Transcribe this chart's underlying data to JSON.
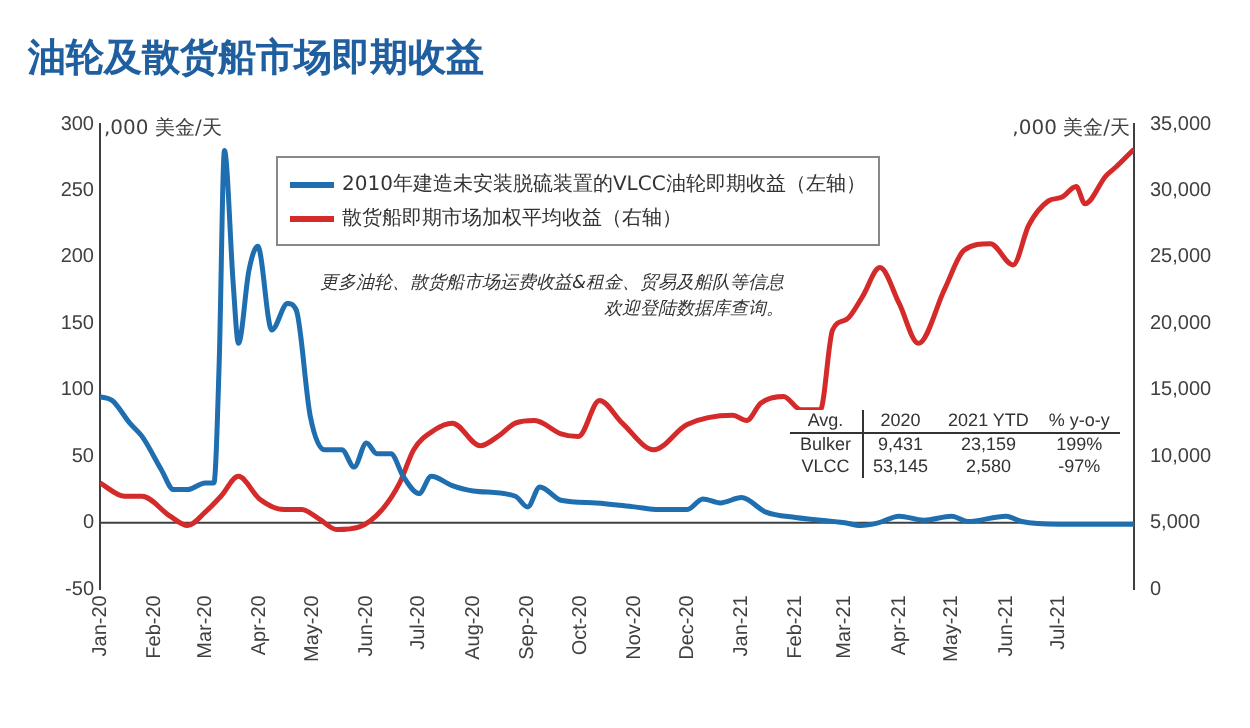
{
  "chart_data": {
    "type": "line",
    "title": "油轮及散货船市场即期收益",
    "ylabel": ",000 美金/天",
    "y2label": ",000 美金/天",
    "xlim": [
      "2020-01-01",
      "2021-08-13"
    ],
    "xticks": [
      {
        "value": "2020-01-01",
        "label": "Jan-20"
      },
      {
        "value": "2020-02-01",
        "label": "Feb-20"
      },
      {
        "value": "2020-03-01",
        "label": "Mar-20"
      },
      {
        "value": "2020-04-01",
        "label": "Apr-20"
      },
      {
        "value": "2020-05-01",
        "label": "May-20"
      },
      {
        "value": "2020-06-01",
        "label": "Jun-20"
      },
      {
        "value": "2020-07-01",
        "label": "Jul-20"
      },
      {
        "value": "2020-08-01",
        "label": "Aug-20"
      },
      {
        "value": "2020-09-01",
        "label": "Sep-20"
      },
      {
        "value": "2020-10-01",
        "label": "Oct-20"
      },
      {
        "value": "2020-11-01",
        "label": "Nov-20"
      },
      {
        "value": "2020-12-01",
        "label": "Dec-20"
      },
      {
        "value": "2021-01-01",
        "label": "Jan-21"
      },
      {
        "value": "2021-02-01",
        "label": "Feb-21"
      },
      {
        "value": "2021-03-01",
        "label": "Mar-21"
      },
      {
        "value": "2021-04-01",
        "label": "Apr-21"
      },
      {
        "value": "2021-05-01",
        "label": "May-21"
      },
      {
        "value": "2021-06-01",
        "label": "Jun-21"
      },
      {
        "value": "2021-07-01",
        "label": "Jul-21"
      }
    ],
    "ylim": [
      -50,
      300
    ],
    "yticks": [
      -50,
      0,
      50,
      100,
      150,
      200,
      250,
      300
    ],
    "y2lim": [
      0,
      35000
    ],
    "y2ticks": [
      0,
      {
        "value": 5000,
        "label": "5,000"
      },
      {
        "value": 10000,
        "label": "10,000"
      },
      {
        "value": 15000,
        "label": "15,000"
      },
      {
        "value": 20000,
        "label": "20,000"
      },
      {
        "value": 25000,
        "label": "25,000"
      },
      {
        "value": 30000,
        "label": "30,000"
      },
      {
        "value": 35000,
        "label": "35,000"
      }
    ],
    "grid": false,
    "legend": "top",
    "marker": "none",
    "line_style": "solid",
    "ref_lines": [
      {
        "axis": "y",
        "value": 0,
        "color": "#404040"
      }
    ],
    "annotations": [
      "更多油轮、散货船市场运费收益&租金、贸易及船队等信息",
      "欢迎登陆数据库查询。",
      "Avg.",
      "2020",
      "2021 YTD",
      "% y-o-y",
      "Bulker",
      "9,431",
      "23,159",
      "199%",
      "VLCC",
      "53,145",
      "2,580",
      "-97%"
    ],
    "series": [
      {
        "name": "2010年建造未安装脱硫装置的VLCC油轮即期收益（左轴）",
        "color": "#1f6fb0",
        "x": [
          "2020-01-01",
          "2020-01-08",
          "2020-01-18",
          "2020-01-25",
          "2020-02-05",
          "2020-02-12",
          "2020-02-20",
          "2020-03-01",
          "2020-03-06",
          "2020-03-09",
          "2020-03-12",
          "2020-03-17",
          "2020-03-20",
          "2020-03-26",
          "2020-03-31",
          "2020-04-08",
          "2020-04-17",
          "2020-04-22",
          "2020-04-30",
          "2020-05-08",
          "2020-05-18",
          "2020-05-25",
          "2020-06-01",
          "2020-06-07",
          "2020-06-15",
          "2020-06-22",
          "2020-07-01",
          "2020-07-08",
          "2020-07-20",
          "2020-08-01",
          "2020-08-25",
          "2020-09-01",
          "2020-09-08",
          "2020-09-20",
          "2020-10-10",
          "2020-11-01",
          "2020-11-15",
          "2020-12-01",
          "2020-12-10",
          "2020-12-20",
          "2021-01-01",
          "2021-01-15",
          "2021-02-01",
          "2021-03-01",
          "2021-03-10",
          "2021-03-20",
          "2021-04-01",
          "2021-04-15",
          "2021-05-01",
          "2021-05-10",
          "2021-06-01",
          "2021-06-10",
          "2021-07-01",
          "2021-08-13"
        ],
        "values": [
          95,
          92,
          75,
          65,
          40,
          25,
          25,
          30,
          30,
          120,
          280,
          180,
          135,
          190,
          208,
          145,
          165,
          160,
          80,
          55,
          55,
          42,
          60,
          52,
          52,
          35,
          22,
          35,
          28,
          24,
          20,
          12,
          27,
          17,
          15,
          12,
          10,
          10,
          18,
          15,
          19,
          8,
          4,
          0,
          -2,
          0,
          5,
          2,
          5,
          1,
          5,
          1,
          -1,
          -1
        ]
      },
      {
        "name": "散货船即期市场加权平均收益（右轴）",
        "color": "#d42a2a",
        "axis": "y2",
        "x": [
          "2020-01-01",
          "2020-01-15",
          "2020-01-25",
          "2020-02-10",
          "2020-02-20",
          "2020-03-01",
          "2020-03-10",
          "2020-03-20",
          "2020-04-01",
          "2020-04-15",
          "2020-04-25",
          "2020-05-05",
          "2020-05-15",
          "2020-05-28",
          "2020-06-10",
          "2020-06-20",
          "2020-06-28",
          "2020-07-10",
          "2020-07-20",
          "2020-08-05",
          "2020-08-15",
          "2020-08-25",
          "2020-09-05",
          "2020-09-20",
          "2020-09-30",
          "2020-10-12",
          "2020-10-25",
          "2020-11-12",
          "2020-12-01",
          "2020-12-27",
          "2021-01-04",
          "2021-01-12",
          "2021-01-25",
          "2021-02-04",
          "2021-02-15",
          "2021-02-22",
          "2021-03-02",
          "2021-03-11",
          "2021-03-21",
          "2021-04-01",
          "2021-04-12",
          "2021-04-27",
          "2021-05-08",
          "2021-05-23",
          "2021-06-05",
          "2021-06-14",
          "2021-06-25",
          "2021-07-03",
          "2021-07-11",
          "2021-07-16",
          "2021-07-28",
          "2021-08-03",
          "2021-08-13"
        ],
        "values": [
          8000,
          7000,
          7000,
          5500,
          4800,
          5800,
          7000,
          8500,
          6800,
          6000,
          6000,
          5300,
          4500,
          4700,
          6000,
          8000,
          10500,
          12000,
          12500,
          10800,
          11500,
          12500,
          12700,
          11700,
          11500,
          14200,
          12500,
          10500,
          12400,
          13100,
          12700,
          14000,
          14500,
          13500,
          13500,
          19500,
          20300,
          22000,
          24200,
          21500,
          18500,
          22600,
          25500,
          26000,
          24400,
          27400,
          29200,
          29500,
          30300,
          29000,
          31100,
          31800,
          33100
        ]
      }
    ]
  }
}
